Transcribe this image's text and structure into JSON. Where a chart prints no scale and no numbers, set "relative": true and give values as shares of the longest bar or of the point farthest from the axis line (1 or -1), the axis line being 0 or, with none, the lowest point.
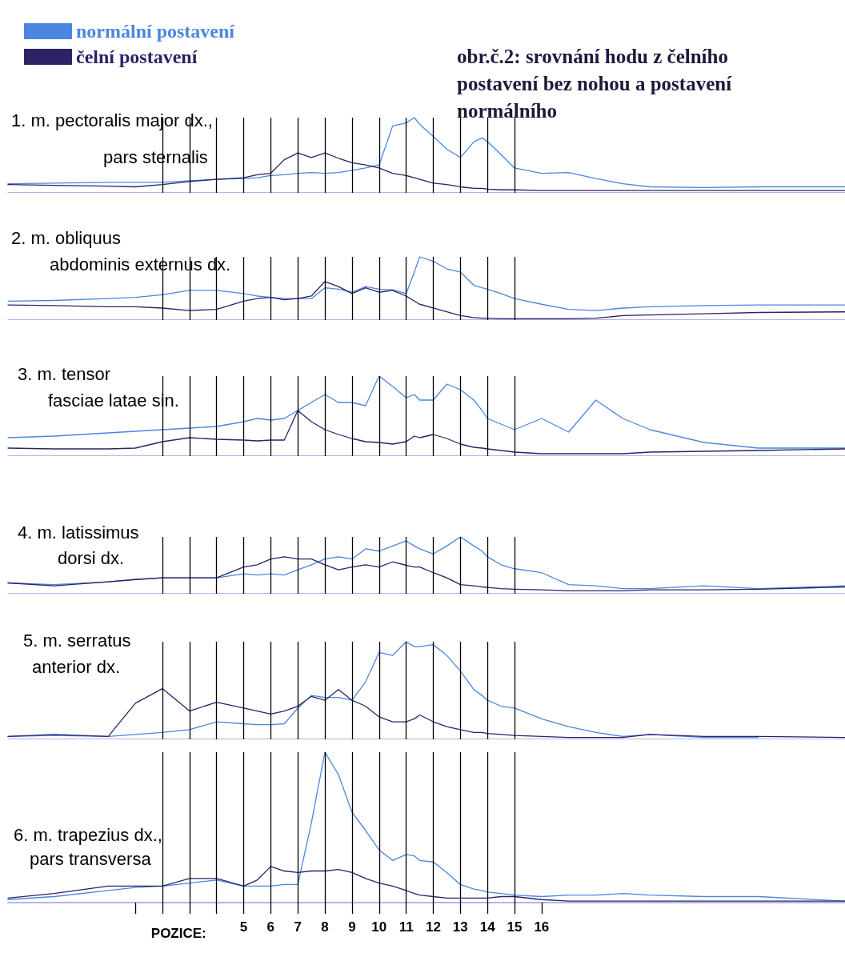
{
  "chart_data": [
    {
      "type": "line",
      "relative": true,
      "title": "obr.č.2: srovnání hodu z čelního postavení bez nohou a postavení normálního",
      "legend": "top left",
      "tick_labels": false,
      "annotations": [
        "1. m. pectoralis major dx.,",
        "pars sternalis"
      ],
      "xlim": [
        -3.7,
        27.2
      ],
      "x": [
        -3.7,
        -2,
        0,
        1,
        2,
        3,
        4,
        5,
        5.5,
        6,
        6.5,
        7,
        7.5,
        8,
        8.5,
        9,
        9.5,
        10,
        10.5,
        11,
        11.3,
        11.5,
        12,
        12.5,
        13,
        13.5,
        13.8,
        14,
        14.5,
        15,
        16,
        17,
        18,
        19,
        20,
        22,
        24,
        27.2
      ],
      "ref_lines": [
        {
          "axis": "x",
          "value": 2,
          "color": "#000000"
        },
        {
          "axis": "x",
          "value": 3,
          "color": "#000000"
        },
        {
          "axis": "x",
          "value": 4,
          "color": "#000000"
        },
        {
          "axis": "x",
          "value": 5,
          "color": "#000000"
        },
        {
          "axis": "x",
          "value": 6,
          "color": "#000000"
        },
        {
          "axis": "x",
          "value": 7,
          "color": "#000000"
        },
        {
          "axis": "x",
          "value": 8,
          "color": "#000000"
        },
        {
          "axis": "x",
          "value": 9,
          "color": "#000000"
        },
        {
          "axis": "x",
          "value": 10,
          "color": "#000000"
        },
        {
          "axis": "x",
          "value": 11,
          "color": "#000000"
        },
        {
          "axis": "x",
          "value": 12,
          "color": "#000000"
        },
        {
          "axis": "x",
          "value": 13,
          "color": "#000000"
        },
        {
          "axis": "x",
          "value": 14,
          "color": "#000000"
        },
        {
          "axis": "x",
          "value": 15,
          "color": "#000000"
        }
      ],
      "series": [
        {
          "name": "normální postavení",
          "color": "#4a86e0",
          "values": [
            0.12,
            0.13,
            0.14,
            0.14,
            0.14,
            0.16,
            0.18,
            0.19,
            0.2,
            0.23,
            0.24,
            0.26,
            0.27,
            0.26,
            0.27,
            0.3,
            0.33,
            0.37,
            0.89,
            0.93,
            1,
            0.91,
            0.75,
            0.58,
            0.47,
            0.68,
            0.73,
            0.68,
            0.51,
            0.33,
            0.26,
            0.27,
            0.19,
            0.12,
            0.08,
            0.07,
            0.08,
            0.08
          ]
        },
        {
          "name": "čelní postavení",
          "color": "#2b2366",
          "values": [
            0.11,
            0.1,
            0.09,
            0.08,
            0.11,
            0.15,
            0.18,
            0.2,
            0.24,
            0.26,
            0.44,
            0.53,
            0.47,
            0.53,
            0.46,
            0.4,
            0.37,
            0.33,
            0.26,
            0.23,
            0.2,
            0.18,
            0.13,
            0.11,
            0.08,
            0.06,
            0.06,
            0.05,
            0.04,
            0.04,
            0.03,
            0.03,
            0.03,
            0.03,
            0.03,
            0.03,
            0.03,
            0.03
          ]
        }
      ]
    },
    {
      "type": "line",
      "relative": true,
      "tick_labels": false,
      "annotations": [
        "2. m. obliquus",
        "abdominis externus dx."
      ],
      "xlim": [
        -3.7,
        27.2
      ],
      "x": [
        -3.7,
        -2,
        0,
        1,
        2,
        3,
        4,
        5,
        5.5,
        6,
        6.5,
        7,
        7.5,
        8,
        8.5,
        9,
        9.5,
        10,
        10.5,
        11,
        11.3,
        11.5,
        12,
        12.5,
        13,
        13.5,
        13.8,
        14,
        14.5,
        15,
        16,
        17,
        18,
        19,
        20,
        22,
        24,
        27.2
      ],
      "ref_lines": [
        {
          "axis": "x",
          "value": 2,
          "color": "#000000"
        },
        {
          "axis": "x",
          "value": 3,
          "color": "#000000"
        },
        {
          "axis": "x",
          "value": 4,
          "color": "#000000"
        },
        {
          "axis": "x",
          "value": 5,
          "color": "#000000"
        },
        {
          "axis": "x",
          "value": 6,
          "color": "#000000"
        },
        {
          "axis": "x",
          "value": 7,
          "color": "#000000"
        },
        {
          "axis": "x",
          "value": 8,
          "color": "#000000"
        },
        {
          "axis": "x",
          "value": 9,
          "color": "#000000"
        },
        {
          "axis": "x",
          "value": 10,
          "color": "#000000"
        },
        {
          "axis": "x",
          "value": 11,
          "color": "#000000"
        },
        {
          "axis": "x",
          "value": 12,
          "color": "#000000"
        },
        {
          "axis": "x",
          "value": 13,
          "color": "#000000"
        },
        {
          "axis": "x",
          "value": 14,
          "color": "#000000"
        },
        {
          "axis": "x",
          "value": 15,
          "color": "#000000"
        }
      ],
      "series": [
        {
          "color": "#4a86e0",
          "values": [
            0.3,
            0.31,
            0.34,
            0.36,
            0.4,
            0.47,
            0.47,
            0.42,
            0.38,
            0.36,
            0.34,
            0.34,
            0.34,
            0.51,
            0.49,
            0.44,
            0.53,
            0.49,
            0.48,
            0.42,
            0.76,
            1,
            0.93,
            0.81,
            0.76,
            0.55,
            0.51,
            0.49,
            0.42,
            0.34,
            0.25,
            0.17,
            0.15,
            0.19,
            0.21,
            0.23,
            0.24,
            0.24
          ]
        },
        {
          "color": "#2b2366",
          "values": [
            0.24,
            0.23,
            0.21,
            0.21,
            0.19,
            0.15,
            0.17,
            0.3,
            0.34,
            0.36,
            0.32,
            0.34,
            0.38,
            0.61,
            0.53,
            0.42,
            0.51,
            0.44,
            0.47,
            0.38,
            0.3,
            0.25,
            0.19,
            0.13,
            0.07,
            0.04,
            0.03,
            0.03,
            0.02,
            0.02,
            0.02,
            0.02,
            0.03,
            0.07,
            0.08,
            0.1,
            0.12,
            0.13
          ]
        }
      ]
    },
    {
      "type": "line",
      "relative": true,
      "tick_labels": false,
      "annotations": [
        "3. m. tensor",
        "fasciae latae sin."
      ],
      "xlim": [
        -3.7,
        27.2
      ],
      "x": [
        -3.7,
        -2,
        0,
        1,
        2,
        3,
        4,
        5,
        5.5,
        6,
        6.5,
        7,
        7.5,
        8,
        8.5,
        9,
        9.5,
        10,
        10.5,
        11,
        11.3,
        11.5,
        12,
        12.5,
        13,
        13.5,
        13.8,
        14,
        14.5,
        15,
        16,
        17,
        18,
        19,
        20,
        22,
        24,
        27.2
      ],
      "ref_lines": [
        {
          "axis": "x",
          "value": 2,
          "color": "#000000"
        },
        {
          "axis": "x",
          "value": 3,
          "color": "#000000"
        },
        {
          "axis": "x",
          "value": 4,
          "color": "#000000"
        },
        {
          "axis": "x",
          "value": 5,
          "color": "#000000"
        },
        {
          "axis": "x",
          "value": 6,
          "color": "#000000"
        },
        {
          "axis": "x",
          "value": 7,
          "color": "#000000"
        },
        {
          "axis": "x",
          "value": 8,
          "color": "#000000"
        },
        {
          "axis": "x",
          "value": 9,
          "color": "#000000"
        },
        {
          "axis": "x",
          "value": 10,
          "color": "#000000"
        },
        {
          "axis": "x",
          "value": 11,
          "color": "#000000"
        },
        {
          "axis": "x",
          "value": 12,
          "color": "#000000"
        },
        {
          "axis": "x",
          "value": 13,
          "color": "#000000"
        },
        {
          "axis": "x",
          "value": 14,
          "color": "#000000"
        },
        {
          "axis": "x",
          "value": 15,
          "color": "#000000"
        }
      ],
      "series": [
        {
          "color": "#4a86e0",
          "values": [
            0.23,
            0.25,
            0.29,
            0.31,
            0.33,
            0.35,
            0.37,
            0.43,
            0.47,
            0.45,
            0.47,
            0.57,
            0.67,
            0.77,
            0.67,
            0.67,
            0.63,
            1,
            0.87,
            0.73,
            0.77,
            0.7,
            0.7,
            0.9,
            0.83,
            0.7,
            0.57,
            0.47,
            0.4,
            0.33,
            0.47,
            0.3,
            0.7,
            0.47,
            0.33,
            0.17,
            0.1,
            0.1
          ]
        },
        {
          "color": "#2b2366",
          "values": [
            0.1,
            0.09,
            0.09,
            0.1,
            0.18,
            0.23,
            0.21,
            0.2,
            0.19,
            0.2,
            0.2,
            0.57,
            0.43,
            0.33,
            0.27,
            0.22,
            0.18,
            0.17,
            0.15,
            0.18,
            0.25,
            0.23,
            0.27,
            0.22,
            0.15,
            0.11,
            0.1,
            0.09,
            0.07,
            0.05,
            0.03,
            0.03,
            0.03,
            0.03,
            0.05,
            0.06,
            0.07,
            0.09
          ]
        }
      ]
    },
    {
      "type": "line",
      "relative": true,
      "tick_labels": false,
      "annotations": [
        "4. m. latissimus",
        "dorsi dx."
      ],
      "xlim": [
        -3.7,
        27.2
      ],
      "x": [
        -3.7,
        -2,
        0,
        1,
        2,
        3,
        4,
        5,
        5.5,
        6,
        6.5,
        7,
        7.5,
        8,
        8.5,
        9,
        9.5,
        10,
        10.5,
        11,
        11.3,
        11.5,
        12,
        12.5,
        13,
        13.5,
        13.8,
        14,
        14.5,
        15,
        16,
        17,
        18,
        19,
        20,
        22,
        24,
        27.2
      ],
      "ref_lines": [
        {
          "axis": "x",
          "value": 2,
          "color": "#000000"
        },
        {
          "axis": "x",
          "value": 3,
          "color": "#000000"
        },
        {
          "axis": "x",
          "value": 4,
          "color": "#000000"
        },
        {
          "axis": "x",
          "value": 5,
          "color": "#000000"
        },
        {
          "axis": "x",
          "value": 6,
          "color": "#000000"
        },
        {
          "axis": "x",
          "value": 7,
          "color": "#000000"
        },
        {
          "axis": "x",
          "value": 8,
          "color": "#000000"
        },
        {
          "axis": "x",
          "value": 9,
          "color": "#000000"
        },
        {
          "axis": "x",
          "value": 10,
          "color": "#000000"
        },
        {
          "axis": "x",
          "value": 11,
          "color": "#000000"
        },
        {
          "axis": "x",
          "value": 12,
          "color": "#000000"
        },
        {
          "axis": "x",
          "value": 13,
          "color": "#000000"
        },
        {
          "axis": "x",
          "value": 14,
          "color": "#000000"
        },
        {
          "axis": "x",
          "value": 15,
          "color": "#000000"
        }
      ],
      "series": [
        {
          "color": "#4a86e0",
          "values": [
            0.19,
            0.16,
            0.21,
            0.25,
            0.28,
            0.28,
            0.28,
            0.35,
            0.33,
            0.35,
            0.33,
            0.42,
            0.51,
            0.61,
            0.65,
            0.61,
            0.79,
            0.75,
            0.84,
            0.93,
            0.84,
            0.79,
            0.7,
            0.84,
            1,
            0.84,
            0.75,
            0.65,
            0.51,
            0.44,
            0.37,
            0.16,
            0.14,
            0.09,
            0.09,
            0.14,
            0.09,
            0.14
          ]
        },
        {
          "color": "#2b2366",
          "values": [
            0.19,
            0.14,
            0.21,
            0.25,
            0.28,
            0.28,
            0.28,
            0.47,
            0.51,
            0.61,
            0.65,
            0.61,
            0.61,
            0.51,
            0.42,
            0.47,
            0.51,
            0.47,
            0.56,
            0.5,
            0.47,
            0.47,
            0.37,
            0.28,
            0.16,
            0.14,
            0.12,
            0.11,
            0.09,
            0.08,
            0.07,
            0.05,
            0.05,
            0.05,
            0.07,
            0.07,
            0.08,
            0.12
          ]
        }
      ]
    },
    {
      "type": "line",
      "relative": true,
      "tick_labels": false,
      "annotations": [
        "5. m. serratus",
        "anterior dx."
      ],
      "xlim": [
        -3.7,
        27.2
      ],
      "x": [
        -3.7,
        -2,
        0,
        1,
        2,
        3,
        4,
        5,
        5.5,
        6,
        6.5,
        7,
        7.5,
        8,
        8.5,
        9,
        9.5,
        10,
        10.5,
        11,
        11.3,
        11.5,
        12,
        12.5,
        13,
        13.5,
        13.8,
        14,
        14.5,
        15,
        16,
        17,
        18,
        19,
        20,
        22,
        24,
        27.2
      ],
      "ref_lines": [
        {
          "axis": "x",
          "value": 2,
          "color": "#000000"
        },
        {
          "axis": "x",
          "value": 3,
          "color": "#000000"
        },
        {
          "axis": "x",
          "value": 4,
          "color": "#000000"
        },
        {
          "axis": "x",
          "value": 5,
          "color": "#000000"
        },
        {
          "axis": "x",
          "value": 6,
          "color": "#000000"
        },
        {
          "axis": "x",
          "value": 7,
          "color": "#000000"
        },
        {
          "axis": "x",
          "value": 8,
          "color": "#000000"
        },
        {
          "axis": "x",
          "value": 9,
          "color": "#000000"
        },
        {
          "axis": "x",
          "value": 10,
          "color": "#000000"
        },
        {
          "axis": "x",
          "value": 11,
          "color": "#000000"
        },
        {
          "axis": "x",
          "value": 12,
          "color": "#000000"
        },
        {
          "axis": "x",
          "value": 13,
          "color": "#000000"
        },
        {
          "axis": "x",
          "value": 14,
          "color": "#000000"
        },
        {
          "axis": "x",
          "value": 15,
          "color": "#000000"
        }
      ],
      "series": [
        {
          "color": "#4a86e0",
          "values": [
            0.03,
            0.04,
            0.03,
            0.05,
            0.07,
            0.1,
            0.18,
            0.16,
            0.15,
            0.15,
            0.16,
            0.32,
            0.45,
            0.43,
            0.43,
            0.4,
            0.59,
            0.89,
            0.86,
            1,
            0.95,
            0.95,
            0.97,
            0.86,
            0.7,
            0.51,
            0.45,
            0.4,
            0.34,
            0.32,
            0.21,
            0.13,
            0.07,
            0.03,
            0.05,
            0.02,
            0.02,
            null
          ]
        },
        {
          "color": "#2b2366",
          "values": [
            0.03,
            0.05,
            0.03,
            0.37,
            0.52,
            0.29,
            0.38,
            0.32,
            0.29,
            0.26,
            0.29,
            0.34,
            0.44,
            0.4,
            0.51,
            0.4,
            0.34,
            0.23,
            0.18,
            0.18,
            0.21,
            0.25,
            0.18,
            0.13,
            0.1,
            0.07,
            0.07,
            0.06,
            0.05,
            0.04,
            0.03,
            0.02,
            0.02,
            0.02,
            0.05,
            0.03,
            0.03,
            0.02
          ]
        }
      ]
    },
    {
      "type": "line",
      "relative": true,
      "tick_labels": "x",
      "xlabel": "POZICE:",
      "annotations": [
        "6. m. trapezius dx.,",
        "pars transversa"
      ],
      "xlim": [
        -3.7,
        27.2
      ],
      "xticks": [
        {
          "value": 1,
          "label": null
        },
        {
          "value": 2,
          "label": null
        },
        {
          "value": 3,
          "label": null
        },
        {
          "value": 4,
          "label": null
        },
        5,
        6,
        7,
        8,
        9,
        10,
        11,
        12,
        13,
        14,
        15,
        16
      ],
      "x": [
        -3.7,
        -2,
        0,
        1,
        2,
        3,
        4,
        5,
        5.5,
        6,
        6.5,
        7,
        7.5,
        8,
        8.5,
        9,
        9.5,
        10,
        10.5,
        11,
        11.3,
        11.5,
        12,
        12.5,
        13,
        13.5,
        13.8,
        14,
        14.5,
        15,
        16,
        17,
        18,
        19,
        20,
        22,
        24,
        27.2
      ],
      "ref_lines": [
        {
          "axis": "x",
          "value": 2,
          "color": "#000000"
        },
        {
          "axis": "x",
          "value": 3,
          "color": "#000000"
        },
        {
          "axis": "x",
          "value": 4,
          "color": "#000000"
        },
        {
          "axis": "x",
          "value": 5,
          "color": "#000000"
        },
        {
          "axis": "x",
          "value": 6,
          "color": "#000000"
        },
        {
          "axis": "x",
          "value": 7,
          "color": "#000000"
        },
        {
          "axis": "x",
          "value": 8,
          "color": "#000000"
        },
        {
          "axis": "x",
          "value": 9,
          "color": "#000000"
        },
        {
          "axis": "x",
          "value": 10,
          "color": "#000000"
        },
        {
          "axis": "x",
          "value": 11,
          "color": "#000000"
        },
        {
          "axis": "x",
          "value": 12,
          "color": "#000000"
        },
        {
          "axis": "x",
          "value": 13,
          "color": "#000000"
        },
        {
          "axis": "x",
          "value": 14,
          "color": "#000000"
        },
        {
          "axis": "x",
          "value": 15,
          "color": "#000000"
        }
      ],
      "series": [
        {
          "color": "#4a86e0",
          "values": [
            0.02,
            0.04,
            0.08,
            0.1,
            0.11,
            0.13,
            0.15,
            0.11,
            0.11,
            0.11,
            0.12,
            0.12,
            0.53,
            1,
            0.85,
            0.6,
            0.48,
            0.35,
            0.28,
            0.32,
            0.31,
            0.28,
            0.27,
            0.2,
            0.12,
            0.09,
            0.08,
            0.07,
            0.06,
            0.05,
            0.04,
            0.05,
            0.05,
            0.06,
            0.05,
            0.04,
            0.04,
            0.01
          ]
        },
        {
          "color": "#2b2366",
          "values": [
            0.03,
            0.06,
            0.11,
            0.11,
            0.11,
            0.16,
            0.16,
            0.11,
            0.15,
            0.24,
            0.21,
            0.2,
            0.21,
            0.21,
            0.22,
            0.2,
            0.16,
            0.13,
            0.11,
            0.08,
            0.06,
            0.05,
            0.04,
            0.03,
            0.03,
            0.03,
            0.03,
            0.03,
            0.04,
            0.04,
            0.02,
            0.01,
            0.01,
            0.01,
            0.01,
            0.01,
            0.01,
            0.01
          ]
        }
      ]
    }
  ]
}
